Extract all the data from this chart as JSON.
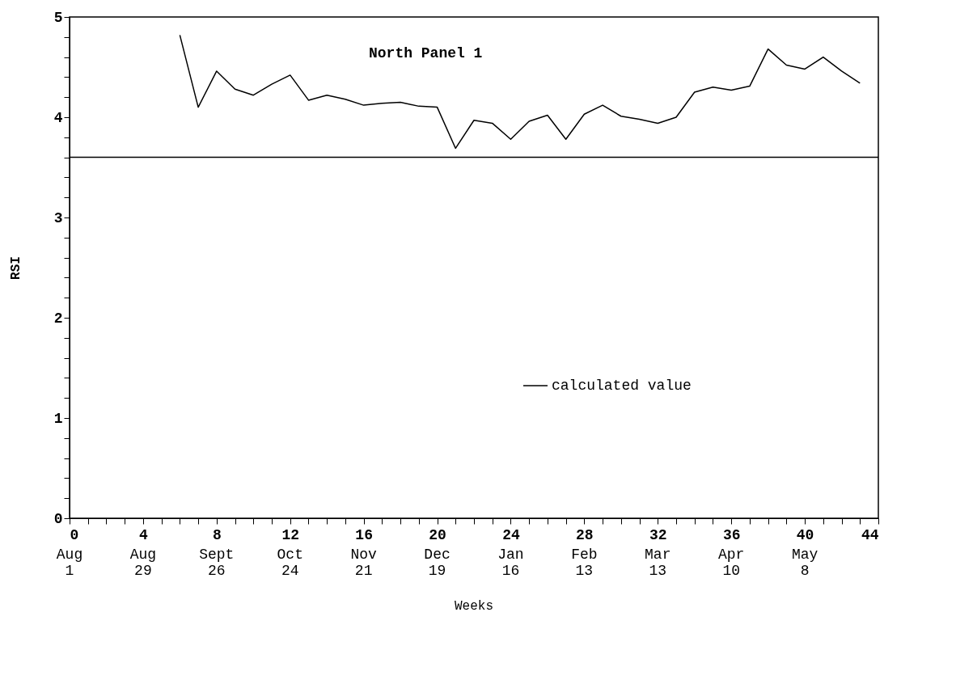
{
  "chart_data": {
    "type": "line",
    "title": "North Panel  1",
    "xlabel": "Weeks",
    "ylabel": "RSI",
    "x": [
      6,
      7,
      8,
      9,
      10,
      11,
      12,
      13,
      14,
      15,
      16,
      17,
      18,
      19,
      20,
      21,
      22,
      23,
      24,
      25,
      26,
      27,
      28,
      29,
      30,
      31,
      32,
      33,
      34,
      35,
      36,
      37,
      38,
      39,
      40,
      41,
      42,
      43
    ],
    "series": [
      {
        "name": "calculated value",
        "color": "#000000",
        "values": [
          4.82,
          4.1,
          4.46,
          4.28,
          4.22,
          4.33,
          4.42,
          4.17,
          4.22,
          4.18,
          4.12,
          4.14,
          4.15,
          4.11,
          4.1,
          3.69,
          3.97,
          3.94,
          3.78,
          3.96,
          4.02,
          3.78,
          4.03,
          4.12,
          4.01,
          3.98,
          3.94,
          4.0,
          4.25,
          4.3,
          4.27,
          4.31,
          4.68,
          4.52,
          4.48,
          4.6,
          4.46,
          4.34
        ]
      }
    ],
    "xlim": [
      0,
      44
    ],
    "xticks": [
      0,
      {
        "value": 1,
        "label": null
      },
      {
        "value": 2,
        "label": null
      },
      {
        "value": 3,
        "label": null
      },
      4,
      {
        "value": 5,
        "label": null
      },
      {
        "value": 6,
        "label": null
      },
      {
        "value": 7,
        "label": null
      },
      8,
      {
        "value": 9,
        "label": null
      },
      {
        "value": 10,
        "label": null
      },
      {
        "value": 11,
        "label": null
      },
      12,
      {
        "value": 13,
        "label": null
      },
      {
        "value": 14,
        "label": null
      },
      {
        "value": 15,
        "label": null
      },
      16,
      {
        "value": 17,
        "label": null
      },
      {
        "value": 18,
        "label": null
      },
      {
        "value": 19,
        "label": null
      },
      20,
      {
        "value": 21,
        "label": null
      },
      {
        "value": 22,
        "label": null
      },
      {
        "value": 23,
        "label": null
      },
      24,
      {
        "value": 25,
        "label": null
      },
      {
        "value": 26,
        "label": null
      },
      {
        "value": 27,
        "label": null
      },
      28,
      {
        "value": 29,
        "label": null
      },
      {
        "value": 30,
        "label": null
      },
      {
        "value": 31,
        "label": null
      },
      32,
      {
        "value": 33,
        "label": null
      },
      {
        "value": 34,
        "label": null
      },
      {
        "value": 35,
        "label": null
      },
      36,
      {
        "value": 37,
        "label": null
      },
      {
        "value": 38,
        "label": null
      },
      {
        "value": 39,
        "label": null
      },
      40,
      {
        "value": 41,
        "label": null
      },
      {
        "value": 42,
        "label": null
      },
      {
        "value": 43,
        "label": null
      },
      44
    ],
    "annotations": [
      "Aug\n1",
      "Aug\n29",
      "Sept\n26",
      "Oct\n24",
      "Nov\n21",
      "Dec\n19",
      "Jan\n16",
      "Feb\n13",
      "Mar\n13",
      "Apr\n10",
      "May\n8"
    ],
    "ylim": [
      0,
      5
    ],
    "yticks": [
      0,
      {
        "value": 0.2,
        "label": null
      },
      {
        "value": 0.4,
        "label": null
      },
      {
        "value": 0.6,
        "label": null
      },
      {
        "value": 0.8,
        "label": null
      },
      1,
      {
        "value": 1.2,
        "label": null
      },
      {
        "value": 1.4,
        "label": null
      },
      {
        "value": 1.6,
        "label": null
      },
      {
        "value": 1.8,
        "label": null
      },
      2,
      {
        "value": 2.2,
        "label": null
      },
      {
        "value": 2.4,
        "label": null
      },
      {
        "value": 2.6,
        "label": null
      },
      {
        "value": 2.8,
        "label": null
      },
      3,
      {
        "value": 3.2,
        "label": null
      },
      {
        "value": 3.4,
        "label": null
      },
      {
        "value": 3.6,
        "label": null
      },
      {
        "value": 3.8,
        "label": null
      },
      4,
      {
        "value": 4.2,
        "label": null
      },
      {
        "value": 4.4,
        "label": null
      },
      {
        "value": 4.6,
        "label": null
      },
      {
        "value": 4.8,
        "label": null
      },
      5
    ],
    "ref_lines": [
      {
        "axis": "y",
        "value": 3.6,
        "color": "#000000"
      }
    ],
    "grid": false,
    "legend": "bottom right",
    "marker": "none",
    "line_style": "solid"
  }
}
